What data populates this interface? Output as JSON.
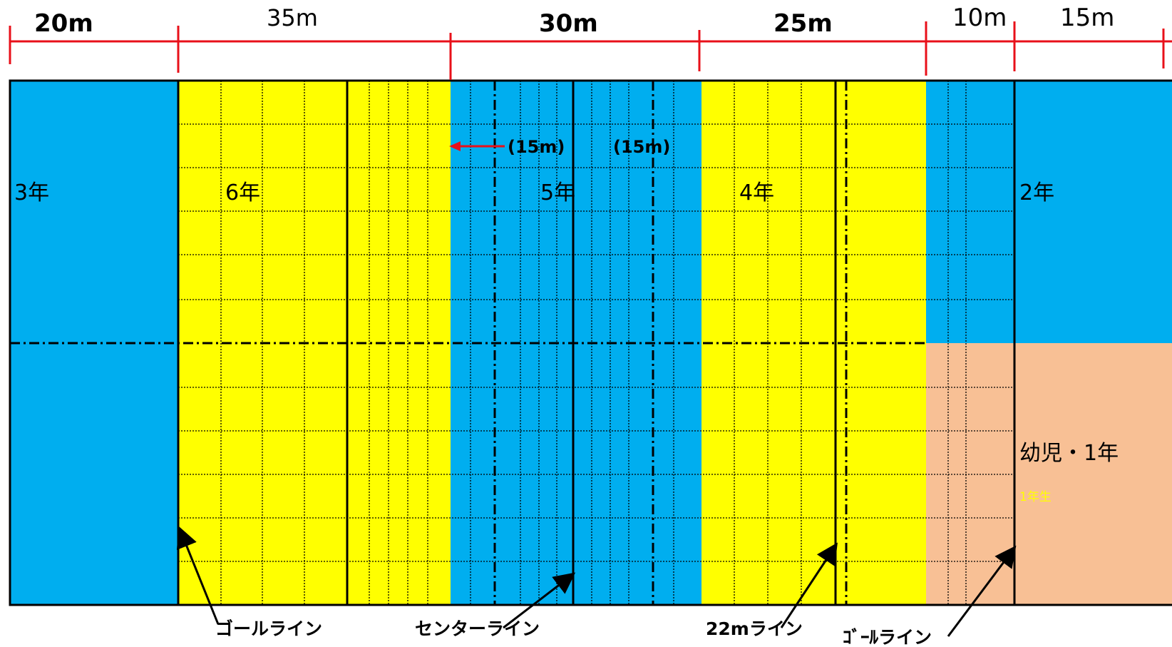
{
  "dimensions": {
    "d1": "20m",
    "d2": "35m",
    "d3": "30m",
    "d4": "25m",
    "d5": "10m",
    "d6": "15m"
  },
  "zones": {
    "grade3": "3年",
    "grade6": "6年",
    "grade5": "5年",
    "grade4": "4年",
    "grade2": "2年",
    "kinder_grade1": "幼児・1年",
    "grade1_small": "1年生"
  },
  "notes": {
    "width_left": "(15m)",
    "width_right": "(15m)"
  },
  "callouts": {
    "goal_line_left": "ゴールライン",
    "center_line": "センターライン",
    "line_22m": "22mライン",
    "goal_line_right": "ｺﾞｰﾙライン"
  },
  "colors": {
    "blue": "#00AEEF",
    "yellow": "#FFFF00",
    "peach": "#F8C095",
    "red": "#E8101A",
    "line": "#000000"
  }
}
